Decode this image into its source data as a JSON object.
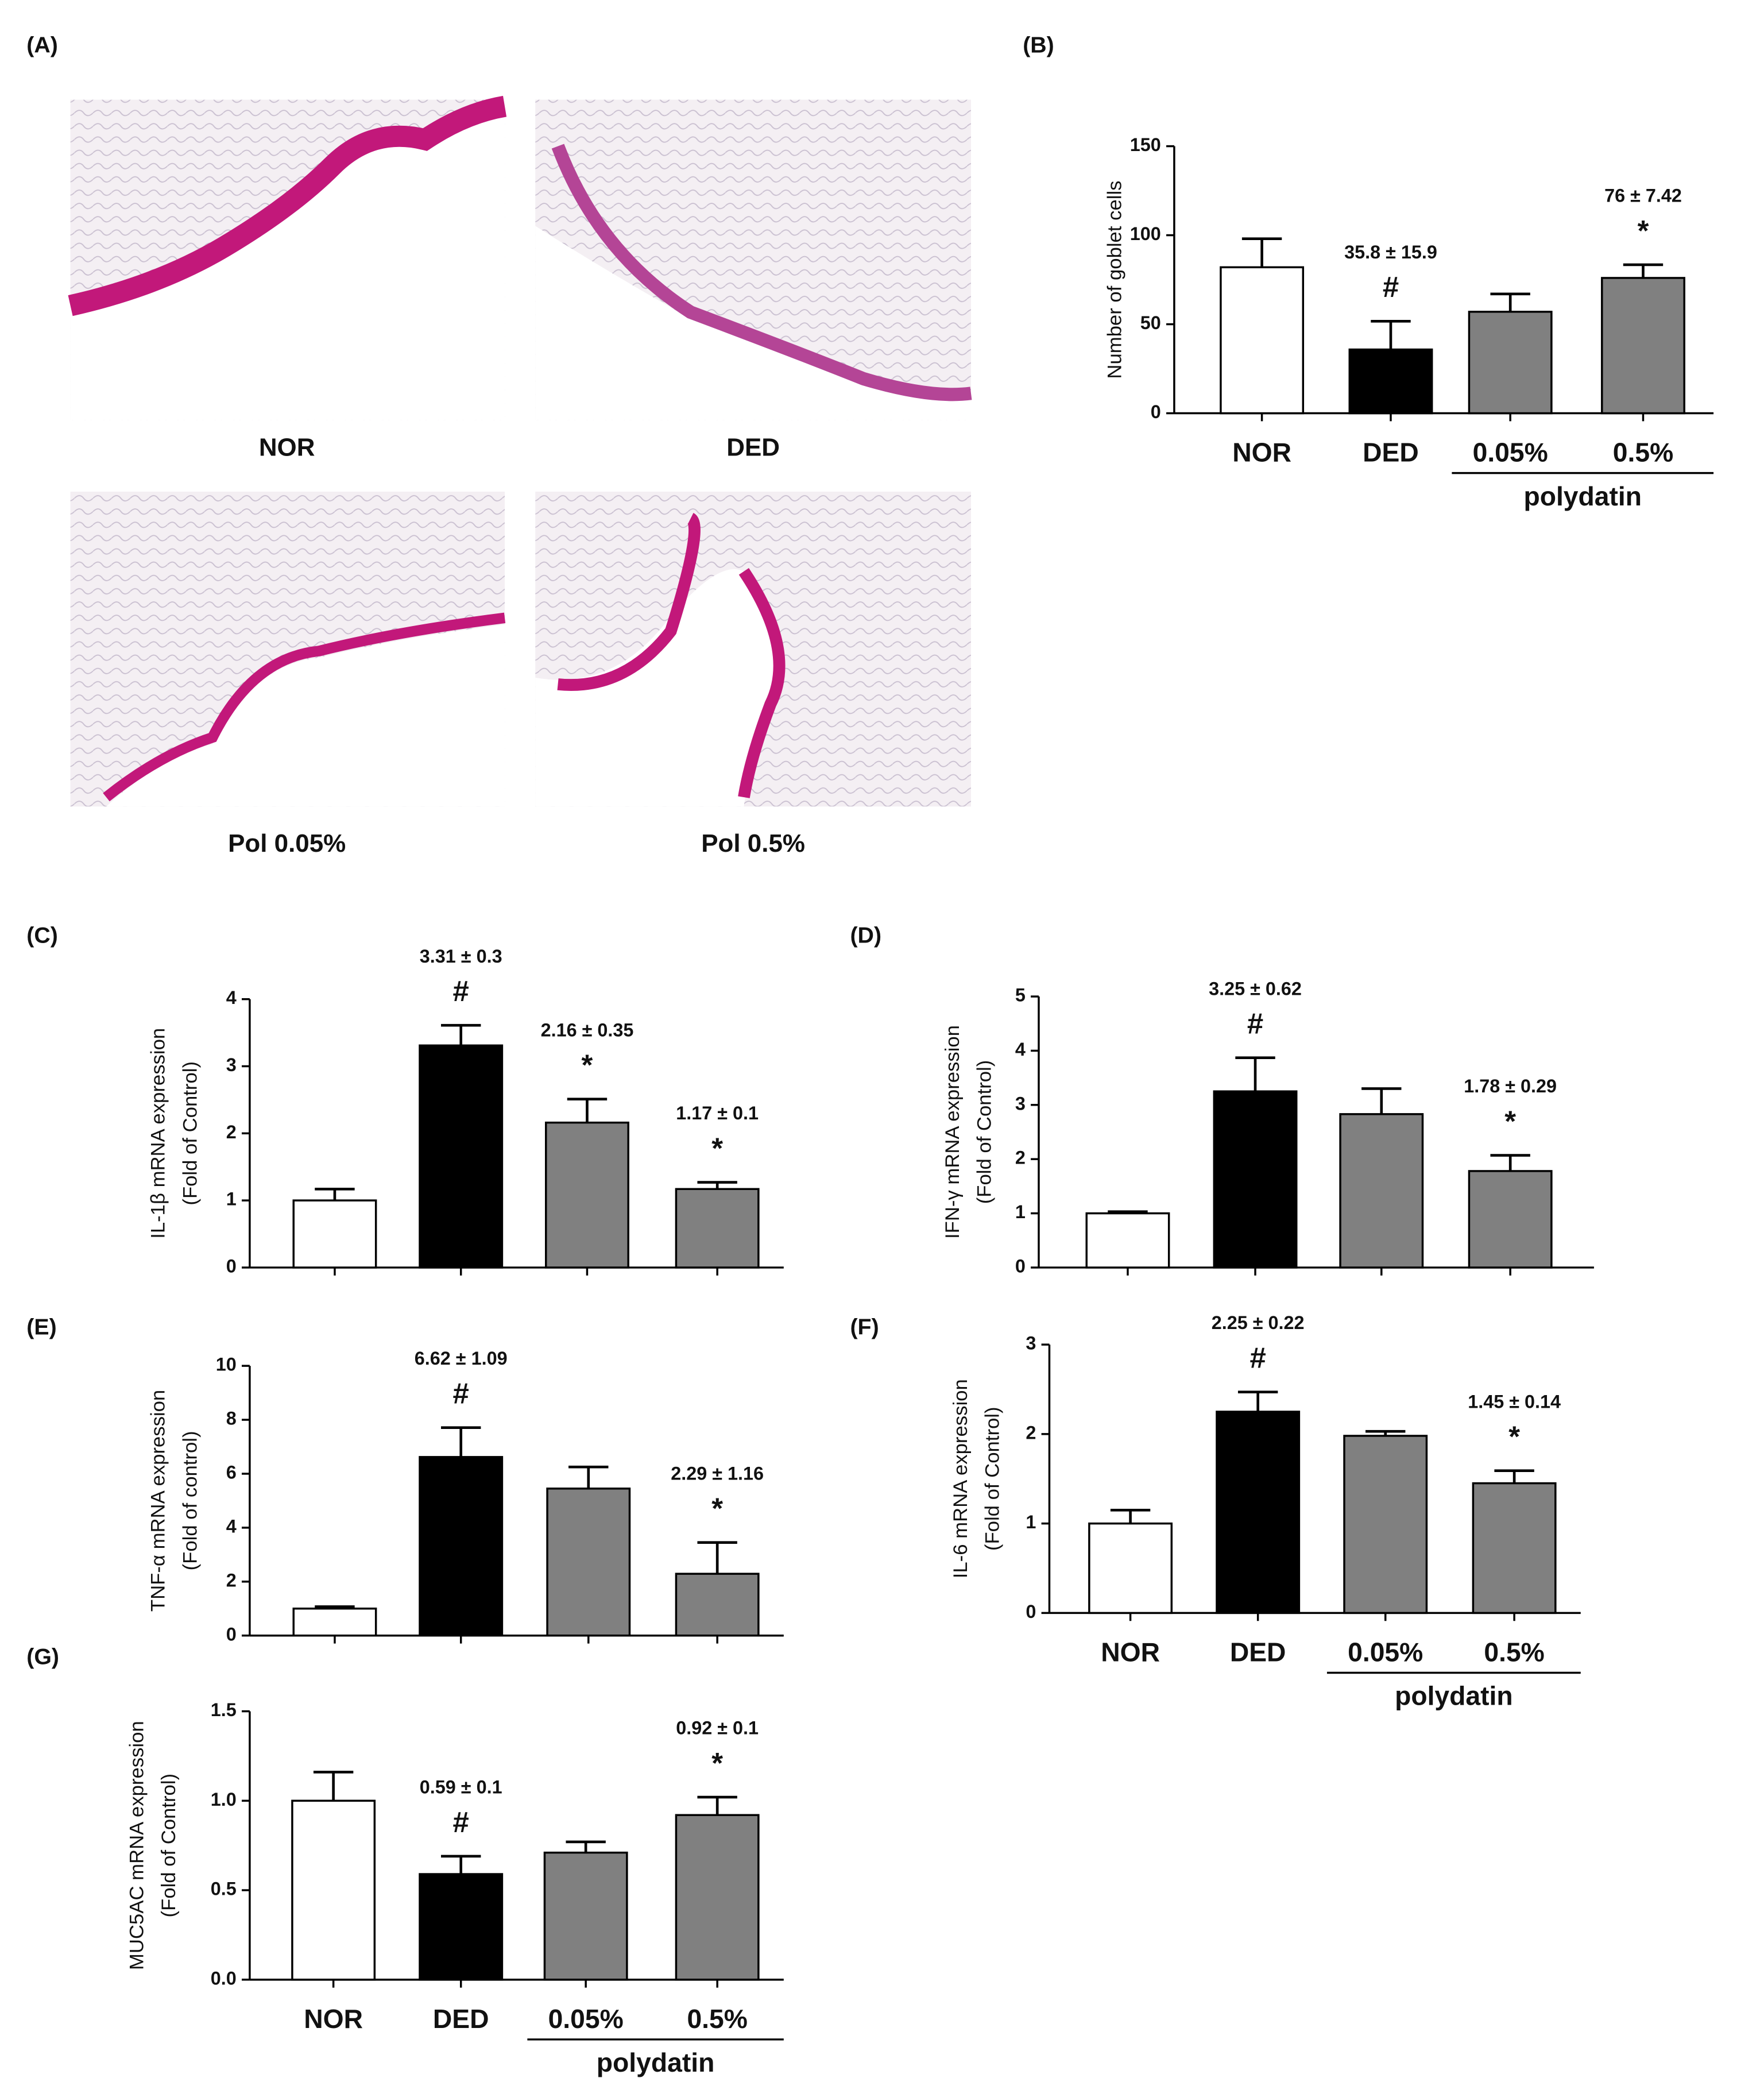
{
  "image_panel": {
    "label": "(A)",
    "captions": [
      "NOR",
      "DED",
      "Pol 0.05%",
      "Pol 0.5%"
    ]
  },
  "chart_data": [
    {
      "type": "bar",
      "panel": "(B)",
      "ylabel": [
        "Number of goblet cells"
      ],
      "categories": [
        "NOR",
        "DED",
        "0.05%",
        "0.5%"
      ],
      "group_label": "polydatin",
      "values": [
        82,
        35.8,
        57,
        76
      ],
      "errors": [
        16,
        15.9,
        10,
        7.42
      ],
      "value_labels": [
        null,
        "35.8 ± 15.9",
        null,
        "76 ± 7.42"
      ],
      "significance": [
        null,
        "#",
        null,
        "*"
      ],
      "colors": [
        "#ffffff",
        "#000000",
        "#808080",
        "#808080"
      ],
      "ylim": [
        0,
        150
      ],
      "yticks": [
        0,
        50,
        100,
        150
      ]
    },
    {
      "type": "bar",
      "panel": "(C)",
      "ylabel": [
        "IL-1β mRNA expression",
        "(Fold of Control)"
      ],
      "categories": [
        null,
        null,
        null,
        null
      ],
      "values": [
        1.0,
        3.31,
        2.16,
        1.17
      ],
      "errors": [
        0.17,
        0.3,
        0.35,
        0.1
      ],
      "value_labels": [
        null,
        "3.31 ± 0.3",
        "2.16 ± 0.35",
        "1.17 ± 0.1"
      ],
      "significance": [
        null,
        "#",
        "*",
        "*"
      ],
      "colors": [
        "#ffffff",
        "#000000",
        "#808080",
        "#808080"
      ],
      "ylim": [
        0,
        4
      ],
      "yticks": [
        0,
        1,
        2,
        3,
        4
      ]
    },
    {
      "type": "bar",
      "panel": "(D)",
      "ylabel": [
        "IFN-γ mRNA expression",
        "(Fold of Control)"
      ],
      "categories": [
        null,
        null,
        null,
        null
      ],
      "values": [
        1.0,
        3.25,
        2.83,
        1.78
      ],
      "errors": [
        0.03,
        0.62,
        0.47,
        0.29
      ],
      "value_labels": [
        null,
        "3.25 ± 0.62",
        null,
        "1.78 ± 0.29"
      ],
      "significance": [
        null,
        "#",
        null,
        "*"
      ],
      "colors": [
        "#ffffff",
        "#000000",
        "#808080",
        "#808080"
      ],
      "ylim": [
        0,
        5
      ],
      "yticks": [
        0,
        1,
        2,
        3,
        4,
        5
      ]
    },
    {
      "type": "bar",
      "panel": "(E)",
      "ylabel": [
        "TNF-α mRNA expression",
        "(Fold of control)"
      ],
      "categories": [
        null,
        null,
        null,
        null
      ],
      "values": [
        1.0,
        6.62,
        5.45,
        2.29
      ],
      "errors": [
        0.07,
        1.09,
        0.8,
        1.16
      ],
      "value_labels": [
        null,
        "6.62 ± 1.09",
        null,
        "2.29 ± 1.16"
      ],
      "significance": [
        null,
        "#",
        null,
        "*"
      ],
      "colors": [
        "#ffffff",
        "#000000",
        "#808080",
        "#808080"
      ],
      "ylim": [
        0,
        10
      ],
      "yticks": [
        0,
        2,
        4,
        6,
        8,
        10
      ]
    },
    {
      "type": "bar",
      "panel": "(F)",
      "ylabel": [
        "IL-6 mRNA expression",
        "(Fold of Control)"
      ],
      "categories": [
        "NOR",
        "DED",
        "0.05%",
        "0.5%"
      ],
      "group_label": "polydatin",
      "values": [
        1.0,
        2.25,
        1.98,
        1.45
      ],
      "errors": [
        0.15,
        0.22,
        0.05,
        0.14
      ],
      "value_labels": [
        null,
        "2.25 ± 0.22",
        null,
        "1.45 ± 0.14"
      ],
      "significance": [
        null,
        "#",
        null,
        "*"
      ],
      "colors": [
        "#ffffff",
        "#000000",
        "#808080",
        "#808080"
      ],
      "ylim": [
        0,
        3
      ],
      "yticks": [
        0,
        1,
        2,
        3
      ]
    },
    {
      "type": "bar",
      "panel": "(G)",
      "ylabel": [
        "MUC5AC mRNA expression",
        "(Fold of Control)"
      ],
      "categories": [
        "NOR",
        "DED",
        "0.05%",
        "0.5%"
      ],
      "group_label": "polydatin",
      "values": [
        1.0,
        0.59,
        0.71,
        0.92
      ],
      "errors": [
        0.16,
        0.1,
        0.06,
        0.1
      ],
      "value_labels": [
        null,
        "0.59 ± 0.1",
        null,
        "0.92 ± 0.1"
      ],
      "significance": [
        null,
        "#",
        null,
        "*"
      ],
      "colors": [
        "#ffffff",
        "#000000",
        "#808080",
        "#808080"
      ],
      "ylim": [
        0,
        1.5
      ],
      "yticks": [
        {
          "value": 0,
          "label": "0.0"
        },
        0.5,
        {
          "value": 1,
          "label": "1.0"
        },
        1.5
      ]
    }
  ]
}
